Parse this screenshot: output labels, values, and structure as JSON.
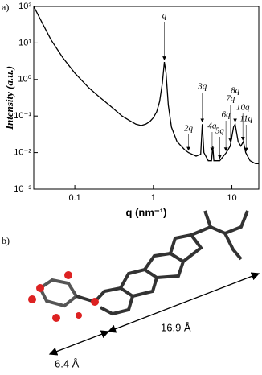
{
  "chart_data": {
    "type": "line",
    "panel_label": "a)",
    "xlabel": "q (nm⁻¹)",
    "ylabel": "Intensity (a.u.)",
    "log_x": true,
    "log_y": true,
    "xlim": [
      0.03,
      22
    ],
    "ylim": [
      0.001,
      100
    ],
    "xticks": [
      0.1,
      1,
      {
        "value": 10,
        "label": "10"
      }
    ],
    "yticks": [
      {
        "value": 100,
        "label": "10²"
      },
      {
        "value": 10,
        "label": "10¹"
      },
      {
        "value": 1,
        "label": "10⁰"
      },
      {
        "value": 0.1,
        "label": "10⁻¹"
      },
      {
        "value": 0.01,
        "label": "10⁻²"
      },
      {
        "value": 0.001,
        "label": "10⁻³"
      }
    ],
    "series": [
      {
        "color": "#000000",
        "x": [
          0.03,
          0.04,
          0.05,
          0.07,
          0.1,
          0.15,
          0.2,
          0.3,
          0.4,
          0.5,
          0.6,
          0.7,
          0.8,
          0.9,
          1.0,
          1.1,
          1.2,
          1.3,
          1.38,
          1.45,
          1.55,
          1.7,
          2.0,
          2.5,
          2.8,
          3.5,
          4.0,
          4.2,
          4.4,
          5.0,
          5.5,
          5.7,
          5.9,
          7.0,
          7.8,
          8.5,
          9.5,
          10.5,
          11.0,
          12.0,
          13.0,
          14.0,
          15.0,
          17.0,
          20.0,
          22.0
        ],
        "values": [
          100,
          30,
          12,
          4,
          1.5,
          0.6,
          0.35,
          0.17,
          0.1,
          0.075,
          0.06,
          0.055,
          0.06,
          0.07,
          0.09,
          0.13,
          0.25,
          0.8,
          3,
          1.5,
          0.2,
          0.05,
          0.02,
          0.012,
          0.01,
          0.008,
          0.009,
          0.06,
          0.01,
          0.006,
          0.006,
          0.015,
          0.006,
          0.006,
          0.008,
          0.01,
          0.015,
          0.05,
          0.06,
          0.02,
          0.015,
          0.02,
          0.01,
          0.006,
          0.005,
          0.005
        ]
      }
    ],
    "annotations": [
      {
        "label": "q",
        "x": 1.38
      },
      {
        "label": "2q",
        "x": 2.8
      },
      {
        "label": "3q",
        "x": 4.2
      },
      {
        "label": "4q",
        "x": 5.6
      },
      {
        "label": "5q",
        "x": 7.0
      },
      {
        "label": "6q",
        "x": 8.4
      },
      {
        "label": "7q",
        "x": 9.6
      },
      {
        "label": "8q",
        "x": 11.0
      },
      {
        "label": "10q",
        "x": 13.8
      },
      {
        "label": "11q",
        "x": 15.2
      }
    ]
  },
  "panel_b": {
    "label": "b)",
    "length_long": "16.9 Å",
    "length_short": "6.4 Å"
  }
}
